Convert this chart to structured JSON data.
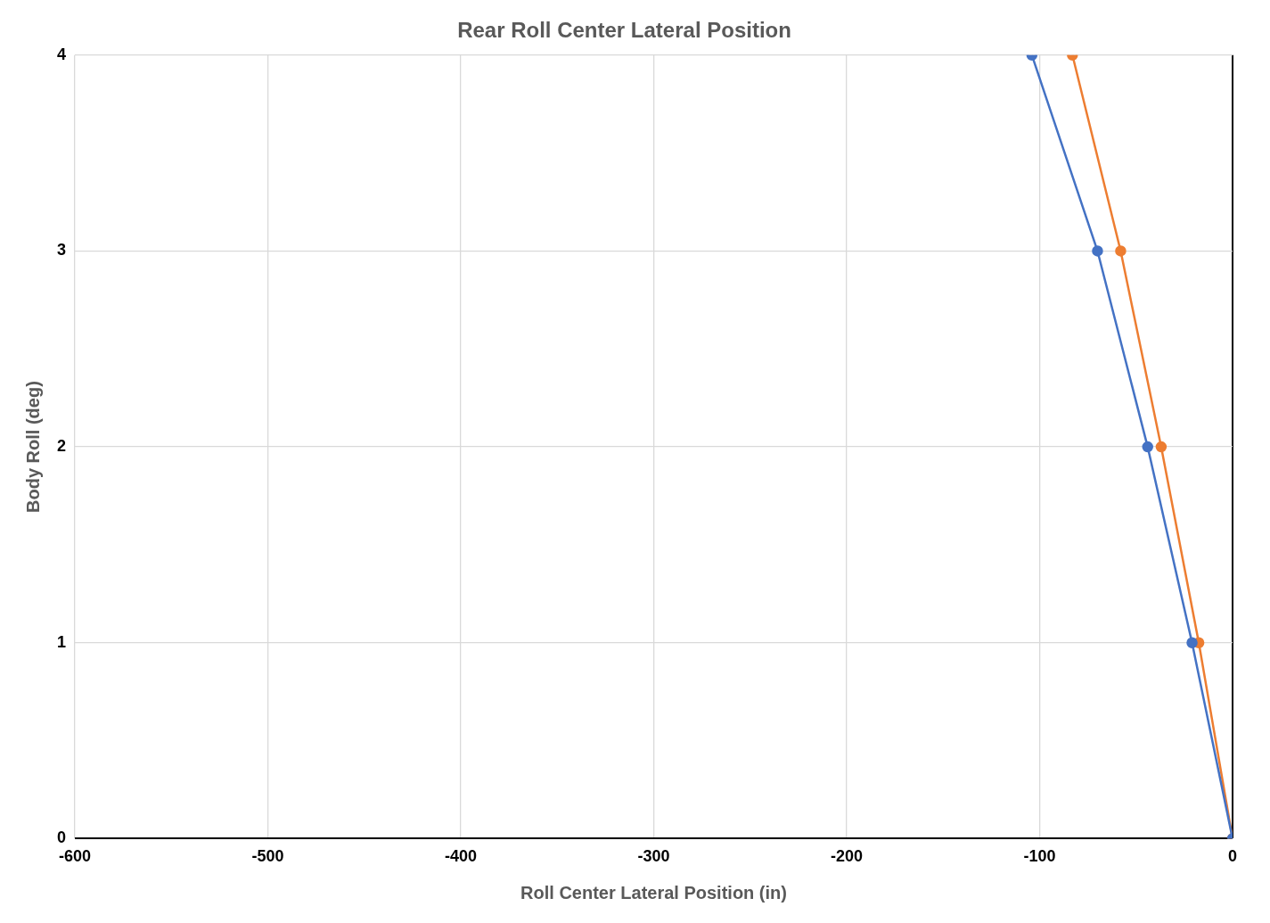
{
  "chart_data": {
    "type": "line",
    "title": "Rear Roll Center Lateral Position",
    "xlabel": "Roll Center Lateral Position (in)",
    "ylabel": "Body Roll (deg)",
    "series": [
      {
        "color": "#4472c4",
        "x": [
          -104,
          -70,
          -44,
          -21,
          0
        ],
        "values": [
          4,
          3,
          2,
          1,
          0
        ]
      },
      {
        "color": "#ed7d31",
        "x": [
          -83,
          -58,
          -37,
          -17.5,
          0
        ],
        "values": [
          4,
          3,
          2,
          1,
          0
        ]
      }
    ],
    "xlim": [
      -600,
      0
    ],
    "xticks": [
      -600,
      -500,
      -400,
      -300,
      -200,
      -100,
      0
    ],
    "ylim": [
      0,
      4
    ],
    "yticks": [
      0,
      1,
      2,
      3,
      4
    ],
    "grid": true,
    "legend": false,
    "marker": "circle",
    "line_style": "solid"
  }
}
